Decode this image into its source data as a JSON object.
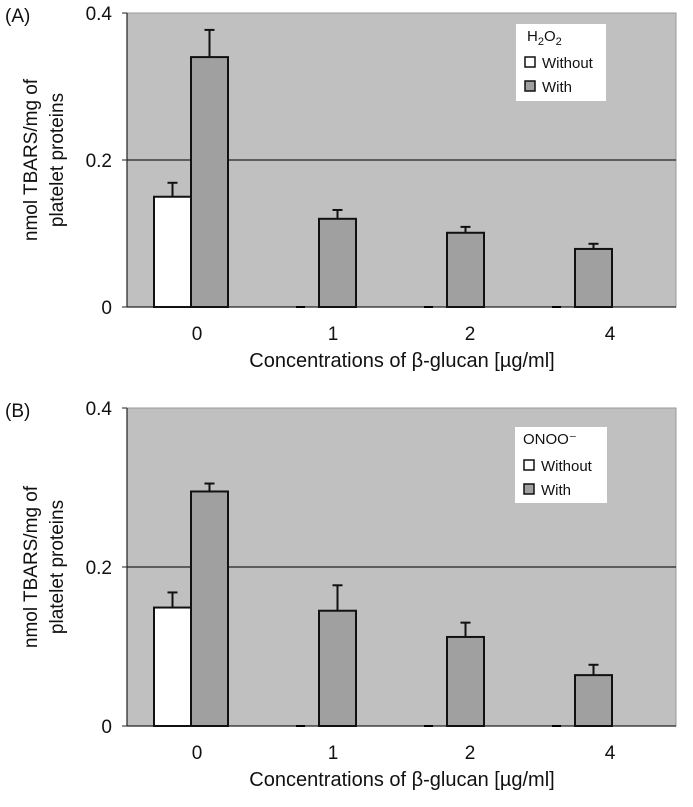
{
  "chart_data": [
    {
      "type": "bar",
      "panel_label": "(A)",
      "categories": [
        "0",
        "1",
        "2",
        "4"
      ],
      "xlabel": "Concentrations of β-glucan [µg/ml]",
      "ylabel_lines": [
        "nmol TBARS/mg of",
        "platelet proteins"
      ],
      "ylim": [
        0,
        0.4
      ],
      "yticks": [
        "0",
        "0.2",
        "0.4"
      ],
      "ytick_values": [
        0,
        0.2,
        0.4
      ],
      "gridlines": [
        0.2
      ],
      "legend": {
        "title": "H2O2",
        "title_main": "H",
        "title_sub1": "2",
        "title_mid": "O",
        "title_sub2": "2",
        "placement": "top-right"
      },
      "series": [
        {
          "name": "Without",
          "color": "#ffffff",
          "values": [
            0.15,
            0,
            0,
            0
          ],
          "errors": [
            0.019,
            0,
            0,
            0
          ]
        },
        {
          "name": "With",
          "color": "#a0a0a0",
          "values": [
            0.34,
            0.12,
            0.101,
            0.079
          ],
          "errors": [
            0.037,
            0.012,
            0.008,
            0.007
          ]
        }
      ]
    },
    {
      "type": "bar",
      "panel_label": "(B)",
      "categories": [
        "0",
        "1",
        "2",
        "4"
      ],
      "xlabel": "Concentrations of β-glucan [µg/ml]",
      "ylabel_lines": [
        "nmol TBARS/mg of",
        "platelet proteins"
      ],
      "ylim": [
        0,
        0.4
      ],
      "yticks": [
        "0",
        "0.2",
        "0.4"
      ],
      "ytick_values": [
        0,
        0.2,
        0.4
      ],
      "gridlines": [
        0.2
      ],
      "legend": {
        "title": "ONOO⁻",
        "placement": "top-right"
      },
      "series": [
        {
          "name": "Without",
          "color": "#ffffff",
          "values": [
            0.149,
            0,
            0,
            0
          ],
          "errors": [
            0.019,
            0,
            0,
            0
          ]
        },
        {
          "name": "With",
          "color": "#a0a0a0",
          "values": [
            0.295,
            0.145,
            0.112,
            0.064
          ],
          "errors": [
            0.01,
            0.032,
            0.018,
            0.013
          ]
        }
      ]
    }
  ],
  "colors": {
    "plot_bg": "#c0c0c0",
    "axis": "#222222"
  }
}
